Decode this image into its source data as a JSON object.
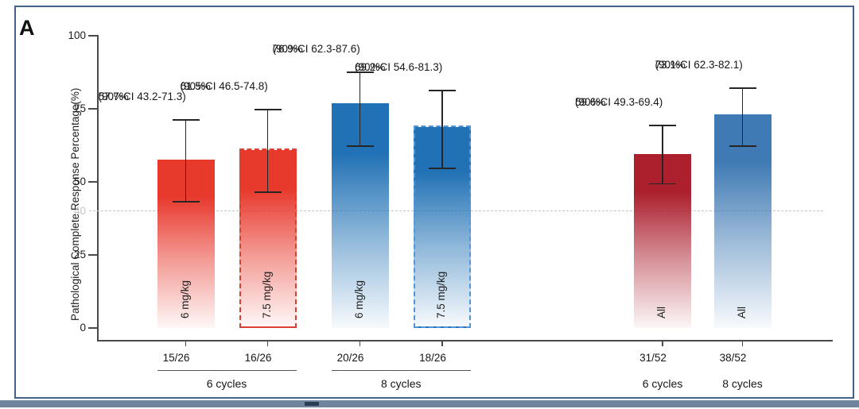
{
  "panel_label": "A",
  "chart_data": {
    "type": "bar",
    "title": "",
    "ylabel": "Pathological Complete Response Percentage(%)",
    "xlabel": "",
    "ylim": [
      0,
      100
    ],
    "yticks": [
      0,
      25,
      50,
      75,
      100
    ],
    "grid": false,
    "legend": "none",
    "reference_line": {
      "value": 40,
      "label": "40",
      "style": "dashed",
      "color": "#C3C3C3"
    },
    "error_bar_color": "#262626",
    "colors": {
      "red": "#E8392D",
      "darkred": "#AC202E",
      "blue": "#2071B5",
      "steelblue": "#3F7AB4",
      "red_border": "#D8402F",
      "blue_border": "#5296D8"
    },
    "bars": [
      {
        "dose": "6 mg/kg",
        "cycles": "6 cycles",
        "value": 57.7,
        "value_label": "57.7%",
        "ci_low": 43.2,
        "ci_high": 71.3,
        "ci_label": "(90%CI 43.2-71.3)",
        "count": "15/26",
        "color_key": "red",
        "dashed": false
      },
      {
        "dose": "7.5 mg/kg",
        "cycles": "6 cycles",
        "value": 61.5,
        "value_label": "61.5%",
        "ci_low": 46.5,
        "ci_high": 74.8,
        "ci_label": "(90%CI 46.5-74.8)",
        "count": "16/26",
        "color_key": "red",
        "dashed": true
      },
      {
        "dose": "6 mg/kg",
        "cycles": "8 cycles",
        "value": 76.9,
        "value_label": "76.9%",
        "ci_low": 62.3,
        "ci_high": 87.6,
        "ci_label": "(90%CI 62.3-87.6)",
        "count": "20/26",
        "color_key": "blue",
        "dashed": false
      },
      {
        "dose": "7.5 mg/kg",
        "cycles": "8 cycles",
        "value": 69.2,
        "value_label": "69.2%",
        "ci_low": 54.6,
        "ci_high": 81.3,
        "ci_label": "(90%CI 54.6-81.3)",
        "count": "18/26",
        "color_key": "blue",
        "dashed": true
      },
      {
        "dose": "All",
        "cycles": "6 cycles",
        "value": 59.6,
        "value_label": "59.6%",
        "ci_low": 49.3,
        "ci_high": 69.4,
        "ci_label": "(90%CI 49.3-69.4)",
        "count": "31/52",
        "color_key": "darkred",
        "dashed": false
      },
      {
        "dose": "All",
        "cycles": "8 cycles",
        "value": 73.1,
        "value_label": "73.1%",
        "ci_low": 62.3,
        "ci_high": 82.1,
        "ci_label": "(90%CI 62.3-82.1)",
        "count": "38/52",
        "color_key": "steelblue",
        "dashed": false
      }
    ],
    "groups": [
      {
        "label": "6 cycles",
        "bar_indexes": [
          0,
          1
        ],
        "underline": true
      },
      {
        "label": "8 cycles",
        "bar_indexes": [
          2,
          3
        ],
        "underline": true
      },
      {
        "label": "6 cycles",
        "bar_indexes": [
          4
        ],
        "underline": false
      },
      {
        "label": "8 cycles",
        "bar_indexes": [
          5
        ],
        "underline": false
      }
    ]
  }
}
